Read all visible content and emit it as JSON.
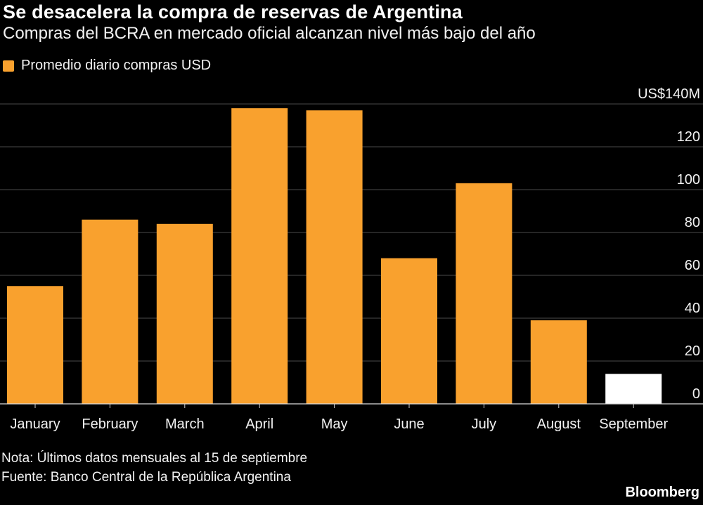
{
  "chart_data": {
    "type": "bar",
    "title": "Se desacelera la compra de reservas de Argentina",
    "subtitle": "Compras del BCRA en mercado oficial alcanzan nivel más bajo del año",
    "legend": {
      "label": "Promedio diario compras USD",
      "placement": "top-left"
    },
    "categories": [
      "January",
      "February",
      "March",
      "April",
      "May",
      "June",
      "July",
      "August",
      "September"
    ],
    "values": [
      55,
      86,
      84,
      138,
      137,
      68,
      103,
      39,
      14
    ],
    "bar_colors": [
      "#F9A12E",
      "#F9A12E",
      "#F9A12E",
      "#F9A12E",
      "#F9A12E",
      "#F9A12E",
      "#F9A12E",
      "#F9A12E",
      "#FFFFFF"
    ],
    "ylim": [
      0,
      140
    ],
    "yticks": [
      0,
      20,
      40,
      60,
      80,
      100,
      120,
      140
    ],
    "ytick_labels": [
      "0",
      "20",
      "40",
      "60",
      "80",
      "100",
      "120",
      "US$140M"
    ],
    "y_axis_position": "right",
    "grid": true
  },
  "footer": {
    "note": "Nota: Últimos datos mensuales al 15 de septiembre",
    "source": "Fuente: Banco Central de la República Argentina",
    "brand": "Bloomberg"
  },
  "colors": {
    "accent": "#F9A12E",
    "background": "#000000",
    "highlight": "#FFFFFF"
  }
}
